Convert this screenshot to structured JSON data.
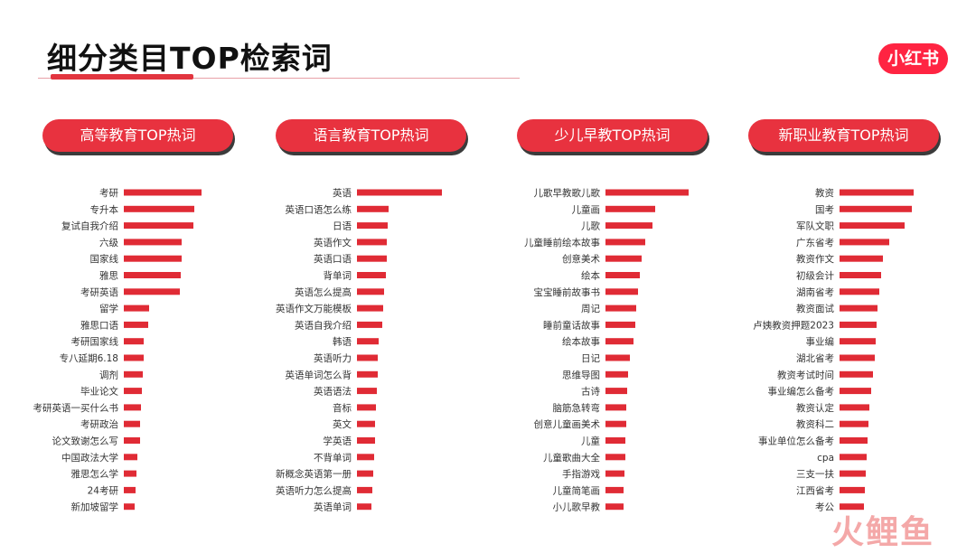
{
  "header": {
    "title": "细分类目TOP检索词",
    "logo_text": "小红书",
    "watermark_text": "火鲤鱼"
  },
  "colors": {
    "accent": "#e8323f",
    "bar": "#e02b35",
    "text": "#333333"
  },
  "chart_data": [
    {
      "type": "bar",
      "orientation": "horizontal",
      "title": "高等教育TOP热词",
      "categories": [
        "考研",
        "专升本",
        "复试自我介绍",
        "六级",
        "国家线",
        "雅思",
        "考研英语",
        "留学",
        "雅思口语",
        "考研国家线",
        "专八延期6.18",
        "调剂",
        "毕业论文",
        "考研英语一买什么书",
        "考研政治",
        "论文致谢怎么写",
        "中国政法大学",
        "雅思怎么学",
        "24考研",
        "新加坡留学"
      ],
      "values": [
        86,
        78,
        77,
        64,
        64,
        63,
        62,
        28,
        27,
        22,
        22,
        21,
        20,
        19,
        18,
        18,
        15,
        14,
        13,
        12
      ]
    },
    {
      "type": "bar",
      "orientation": "horizontal",
      "title": "语言教育TOP热词",
      "categories": [
        "英语",
        "英语口语怎么练",
        "日语",
        "英语作文",
        "英语口语",
        "背单词",
        "英语怎么提高",
        "英语作文万能模板",
        "英语自我介绍",
        "韩语",
        "英语听力",
        "英语单词怎么背",
        "英语语法",
        "音标",
        "英文",
        "学英语",
        "不背单词",
        "新概念英语第一册",
        "英语听力怎么提高",
        "英语单词"
      ],
      "values": [
        94,
        35,
        34,
        33,
        33,
        32,
        30,
        29,
        28,
        24,
        23,
        23,
        22,
        21,
        20,
        20,
        19,
        18,
        17,
        16
      ]
    },
    {
      "type": "bar",
      "orientation": "horizontal",
      "title": "少儿早教TOP热词",
      "categories": [
        "儿歌早教歌儿歌",
        "儿童画",
        "儿歌",
        "儿童睡前绘本故事",
        "创意美术",
        "绘本",
        "宝宝睡前故事书",
        "周记",
        "睡前童话故事",
        "绘本故事",
        "日记",
        "思维导图",
        "古诗",
        "脑筋急转弯",
        "创意儿童画美术",
        "儿童",
        "儿童歌曲大全",
        "手指游戏",
        "儿童简笔画",
        "小儿歌早教"
      ],
      "values": [
        92,
        55,
        52,
        44,
        40,
        38,
        36,
        34,
        33,
        31,
        27,
        25,
        24,
        23,
        23,
        22,
        22,
        21,
        20,
        20
      ]
    },
    {
      "type": "bar",
      "orientation": "horizontal",
      "title": "新职业教育TOP热词",
      "categories": [
        "教资",
        "国考",
        "军队文职",
        "广东省考",
        "教资作文",
        "初级会计",
        "湖南省考",
        "教资面试",
        "卢姨教资押题2023",
        "事业编",
        "湖北省考",
        "教资考试时间",
        "事业编怎么备考",
        "教资认定",
        "教资科二",
        "事业单位怎么备考",
        "cpa",
        "三支一扶",
        "江西省考",
        "考公"
      ],
      "values": [
        82,
        80,
        72,
        55,
        48,
        46,
        44,
        42,
        41,
        40,
        39,
        37,
        35,
        33,
        32,
        31,
        30,
        29,
        28,
        27
      ]
    }
  ]
}
